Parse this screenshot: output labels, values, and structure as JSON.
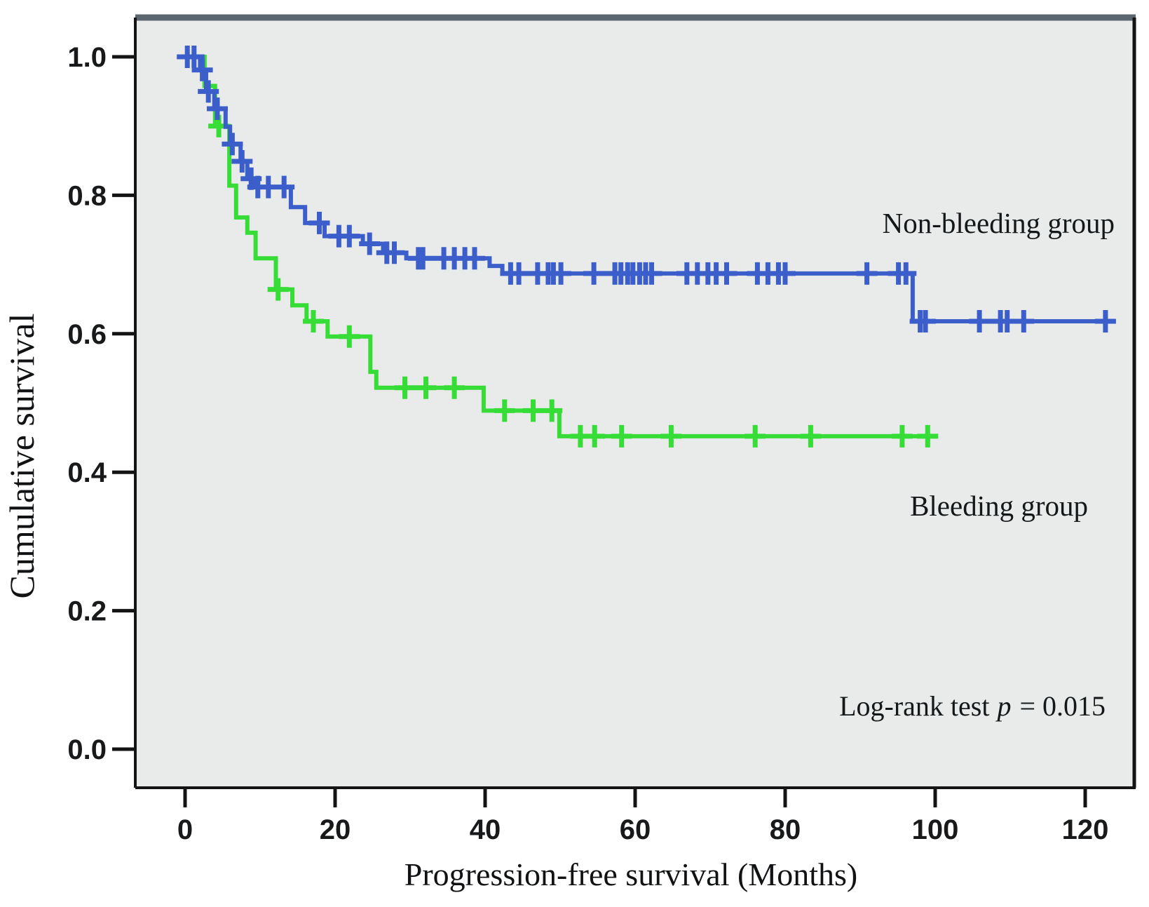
{
  "figure": {
    "background": "#ffffff",
    "plot_bg": "#e8ebe9",
    "frame_color": "#141414",
    "top_border_color": "#5c666e",
    "text_color": "#14181a"
  },
  "axes": {
    "x": {
      "label": "Progression-free survival (Months)",
      "ticks": [
        {
          "label": "0",
          "value": 0
        },
        {
          "label": "20",
          "value": 20
        },
        {
          "label": "40",
          "value": 40
        },
        {
          "label": "60",
          "value": 60
        },
        {
          "label": "80",
          "value": 80
        },
        {
          "label": "100",
          "value": 100
        },
        {
          "label": "120",
          "value": 120
        }
      ]
    },
    "y": {
      "label": "Cumulative survival",
      "ticks": [
        {
          "label": "1.0",
          "value": 1.0
        },
        {
          "label": "0.8",
          "value": 0.8
        },
        {
          "label": "0.6",
          "value": 0.6
        },
        {
          "label": "0.4",
          "value": 0.4
        },
        {
          "label": "0.2",
          "value": 0.2
        },
        {
          "label": "0.0",
          "value": 0.0
        }
      ]
    }
  },
  "annotations": {
    "non_bleeding": "Non-bleeding group",
    "bleeding": "Bleeding group",
    "logrank": {
      "prefix": "Log-rank test",
      "p": "p",
      "suffix": "= 0.015"
    }
  },
  "chart_data": {
    "type": "line",
    "subtype": "kaplan-meier-step",
    "title": "",
    "xlabel": "Progression-free survival (Months)",
    "ylabel": "Cumulative survival",
    "xlim": [
      0,
      120
    ],
    "ylim": [
      0.0,
      1.0
    ],
    "x_tick_values": [
      0,
      20,
      40,
      60,
      80,
      100,
      120
    ],
    "y_tick_values": [
      1.0,
      0.8,
      0.6,
      0.4,
      0.2,
      0.0
    ],
    "legend_position": "inline-annotations",
    "grid": false,
    "stat_test": "Log-rank test p = 0.015",
    "series": [
      {
        "key": "bleeding",
        "name": "Bleeding group",
        "color": "#37dd37",
        "end_time": 99.6,
        "steps": [
          [
            0,
            1.0
          ],
          [
            2.6,
            0.958
          ],
          [
            4.0,
            0.9
          ],
          [
            5.9,
            0.814
          ],
          [
            6.8,
            0.768
          ],
          [
            8.3,
            0.746
          ],
          [
            9.4,
            0.709
          ],
          [
            12.1,
            0.664
          ],
          [
            14.3,
            0.641
          ],
          [
            16.2,
            0.618
          ],
          [
            19.0,
            0.596
          ],
          [
            24.7,
            0.545
          ],
          [
            25.5,
            0.522
          ],
          [
            39.8,
            0.489
          ],
          [
            49.9,
            0.452
          ]
        ],
        "censors": [
          [
            4.5,
            0.9
          ],
          [
            12.4,
            0.664
          ],
          [
            17.1,
            0.618
          ],
          [
            21.9,
            0.596
          ],
          [
            29.3,
            0.522
          ],
          [
            32.1,
            0.522
          ],
          [
            35.9,
            0.522
          ],
          [
            42.6,
            0.489
          ],
          [
            46.4,
            0.489
          ],
          [
            48.9,
            0.489
          ],
          [
            52.7,
            0.452
          ],
          [
            54.6,
            0.452
          ],
          [
            58.2,
            0.452
          ],
          [
            64.8,
            0.452
          ],
          [
            76.0,
            0.452
          ],
          [
            83.4,
            0.452
          ],
          [
            95.6,
            0.452
          ],
          [
            99.0,
            0.452
          ]
        ]
      },
      {
        "key": "non-bleeding",
        "name": "Non-bleeding group",
        "color": "#3b5ecb",
        "end_time": 124,
        "steps": [
          [
            0,
            1.0
          ],
          [
            2.0,
            0.981
          ],
          [
            2.8,
            0.95
          ],
          [
            3.9,
            0.925
          ],
          [
            5.4,
            0.899
          ],
          [
            6.0,
            0.874
          ],
          [
            7.4,
            0.849
          ],
          [
            8.3,
            0.824
          ],
          [
            9.3,
            0.812
          ],
          [
            14.1,
            0.783
          ],
          [
            16.0,
            0.76
          ],
          [
            18.6,
            0.741
          ],
          [
            23.7,
            0.73
          ],
          [
            26.4,
            0.717
          ],
          [
            29.5,
            0.709
          ],
          [
            40.6,
            0.698
          ],
          [
            42.3,
            0.687
          ],
          [
            97.0,
            0.618
          ]
        ],
        "censors": [
          [
            0.3,
            1.0
          ],
          [
            1.2,
            1.0
          ],
          [
            2.3,
            0.981
          ],
          [
            3.1,
            0.95
          ],
          [
            4.3,
            0.925
          ],
          [
            6.3,
            0.874
          ],
          [
            7.6,
            0.849
          ],
          [
            8.8,
            0.824
          ],
          [
            9.7,
            0.812
          ],
          [
            11.1,
            0.812
          ],
          [
            13.2,
            0.812
          ],
          [
            17.9,
            0.76
          ],
          [
            20.5,
            0.741
          ],
          [
            21.9,
            0.741
          ],
          [
            24.6,
            0.73
          ],
          [
            26.9,
            0.717
          ],
          [
            27.9,
            0.717
          ],
          [
            31.1,
            0.709
          ],
          [
            31.7,
            0.709
          ],
          [
            34.5,
            0.709
          ],
          [
            35.9,
            0.709
          ],
          [
            37.3,
            0.709
          ],
          [
            38.6,
            0.709
          ],
          [
            43.4,
            0.687
          ],
          [
            44.5,
            0.687
          ],
          [
            47.0,
            0.687
          ],
          [
            48.4,
            0.687
          ],
          [
            49.1,
            0.687
          ],
          [
            50.1,
            0.687
          ],
          [
            54.5,
            0.687
          ],
          [
            57.3,
            0.687
          ],
          [
            58.1,
            0.687
          ],
          [
            59.0,
            0.687
          ],
          [
            59.7,
            0.687
          ],
          [
            60.6,
            0.687
          ],
          [
            61.4,
            0.687
          ],
          [
            62.2,
            0.687
          ],
          [
            66.9,
            0.687
          ],
          [
            68.3,
            0.687
          ],
          [
            69.7,
            0.687
          ],
          [
            70.8,
            0.687
          ],
          [
            72.2,
            0.687
          ],
          [
            76.3,
            0.687
          ],
          [
            77.7,
            0.687
          ],
          [
            79.1,
            0.687
          ],
          [
            80.0,
            0.687
          ],
          [
            90.9,
            0.687
          ],
          [
            95.1,
            0.687
          ],
          [
            96.1,
            0.687
          ],
          [
            98.0,
            0.618
          ],
          [
            98.7,
            0.618
          ],
          [
            105.9,
            0.618
          ],
          [
            108.7,
            0.618
          ],
          [
            109.6,
            0.618
          ],
          [
            111.8,
            0.618
          ],
          [
            122.7,
            0.618
          ]
        ]
      }
    ]
  }
}
